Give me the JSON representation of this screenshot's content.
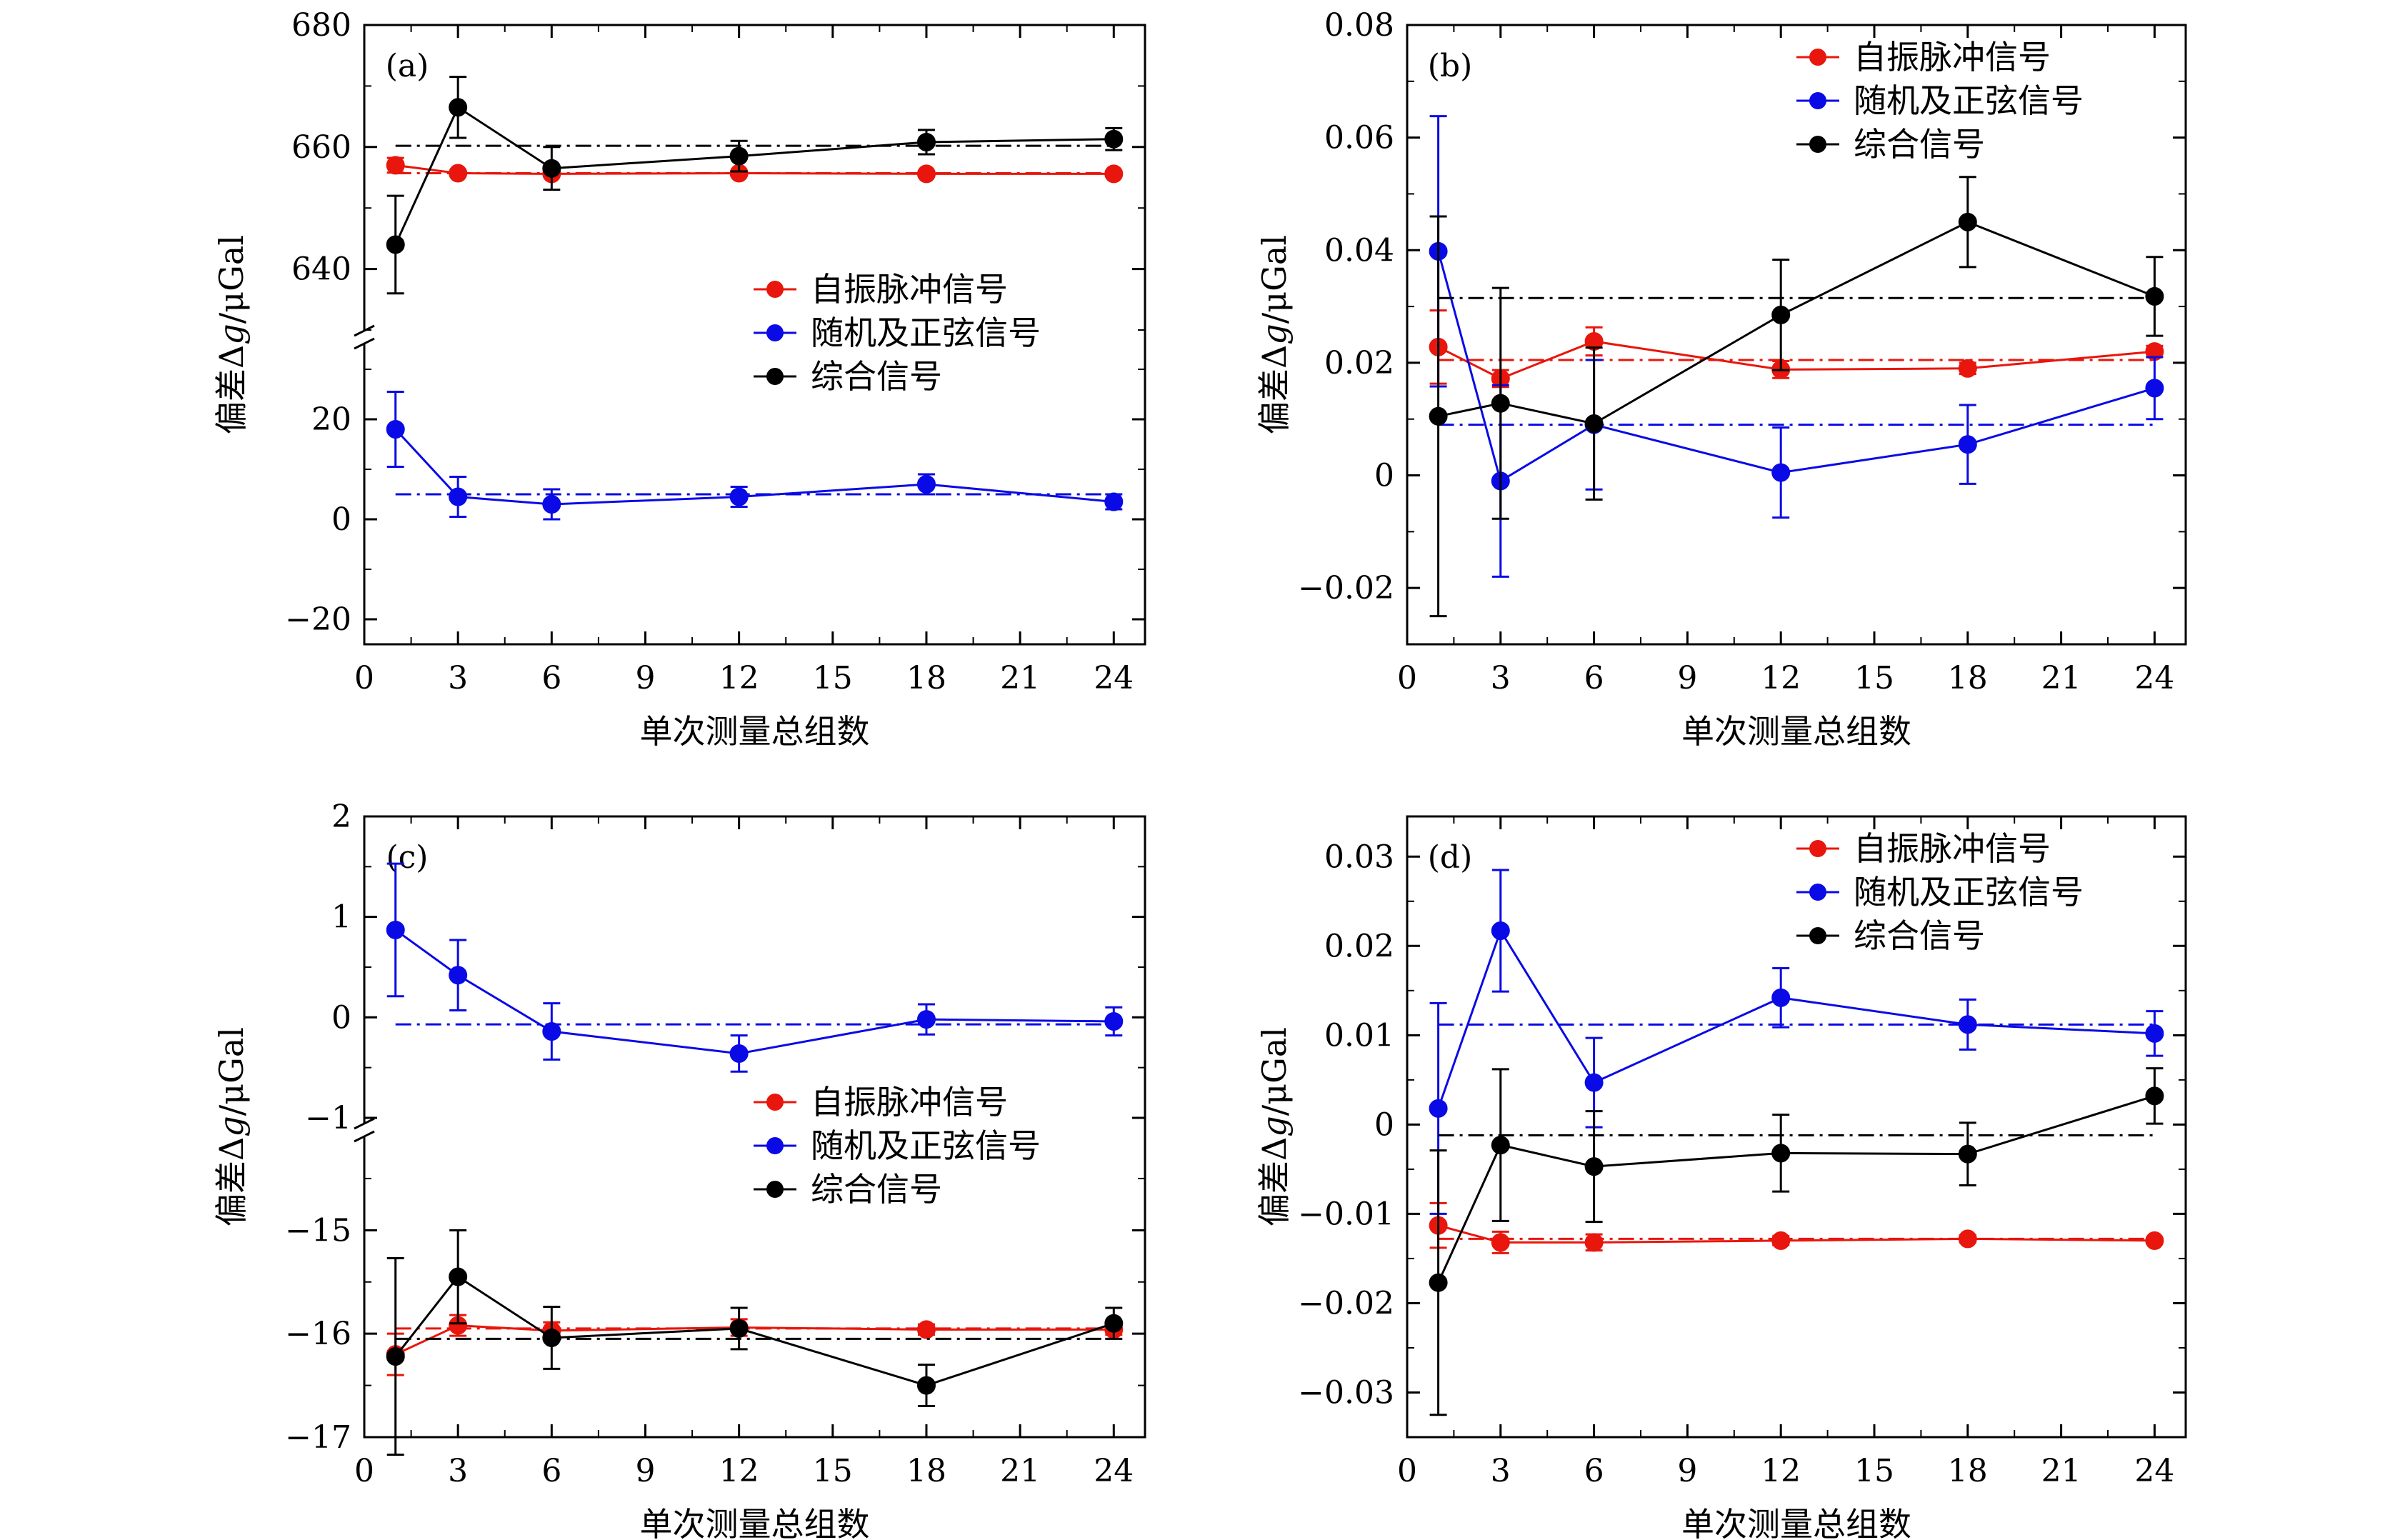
{
  "figure": {
    "xlabel": "单次测量总组数",
    "ylabel_text": "偏差Δ",
    "ylabel_italic": "g",
    "ylabel_unit": "/μGal",
    "colors": {
      "red": "#e8160c",
      "blue": "#0a0ae6",
      "black": "#000000"
    }
  },
  "chart_data": [
    {
      "id": "a",
      "type": "line",
      "panel_label": "(a)",
      "broken_axis": true,
      "x": [
        1,
        3,
        6,
        12,
        18,
        24
      ],
      "xlim": [
        0,
        25
      ],
      "xticks": [
        0,
        3,
        6,
        9,
        12,
        15,
        18,
        21,
        24
      ],
      "upper": {
        "ylim": [
          630,
          680
        ],
        "yticks": [
          640,
          660,
          680
        ]
      },
      "lower": {
        "ylim": [
          -25,
          35
        ],
        "yticks": [
          -20,
          0,
          20
        ]
      },
      "legend": {
        "position": "center-right",
        "labels": [
          "自振脉冲信号",
          "随机及正弦信号",
          "综合信号"
        ]
      },
      "series": [
        {
          "name": "自振脉冲信号",
          "color": "#e8160c",
          "segment": "upper",
          "values": [
            657,
            655.7,
            655.6,
            655.7,
            655.6,
            655.6
          ],
          "errors": [
            1.2,
            0.3,
            0.3,
            0.3,
            0.3,
            0.2
          ],
          "mean": 655.7
        },
        {
          "name": "随机及正弦信号",
          "color": "#0a0ae6",
          "segment": "lower",
          "values": [
            18,
            4.5,
            3,
            4.5,
            7,
            3.5
          ],
          "errors": [
            7.5,
            4,
            3,
            2,
            2,
            1.5
          ],
          "mean": 5
        },
        {
          "name": "综合信号",
          "color": "#000000",
          "segment": "upper",
          "values": [
            644,
            666.5,
            656.5,
            658.5,
            660.8,
            661.3
          ],
          "errors": [
            8,
            5,
            3.5,
            2.5,
            2,
            1.8
          ],
          "mean": 660.2
        }
      ]
    },
    {
      "id": "b",
      "type": "line",
      "panel_label": "(b)",
      "broken_axis": false,
      "x": [
        1,
        3,
        6,
        12,
        18,
        24
      ],
      "xlim": [
        0,
        25
      ],
      "xticks": [
        0,
        3,
        6,
        9,
        12,
        15,
        18,
        21,
        24
      ],
      "ylim": [
        -0.03,
        0.08
      ],
      "yticks": [
        -0.02,
        0,
        0.02,
        0.04,
        0.06,
        0.08
      ],
      "ytick_labels": [
        "−0.02",
        "0",
        "0.02",
        "0.04",
        "0.06",
        "0.08"
      ],
      "legend": {
        "position": "top-right",
        "labels": [
          "自振脉冲信号",
          "随机及正弦信号",
          "综合信号"
        ]
      },
      "series": [
        {
          "name": "自振脉冲信号",
          "color": "#e8160c",
          "values": [
            0.0228,
            0.0172,
            0.0238,
            0.0188,
            0.019,
            0.022
          ],
          "errors": [
            0.0065,
            0.0015,
            0.0025,
            0.0015,
            0.001,
            0.001
          ],
          "mean": 0.0205
        },
        {
          "name": "随机及正弦信号",
          "color": "#0a0ae6",
          "values": [
            0.0398,
            -0.001,
            0.009,
            0.0005,
            0.0055,
            0.0155
          ],
          "errors": [
            0.024,
            0.017,
            0.0115,
            0.008,
            0.007,
            0.0055
          ],
          "mean": 0.009
        },
        {
          "name": "综合信号",
          "color": "#000000",
          "values": [
            0.0105,
            0.0128,
            0.0092,
            0.0285,
            0.045,
            0.0318
          ],
          "errors": [
            0.0355,
            0.0205,
            0.0135,
            0.0098,
            0.008,
            0.007
          ],
          "mean": 0.0315
        }
      ]
    },
    {
      "id": "c",
      "type": "line",
      "panel_label": "(c)",
      "broken_axis": true,
      "x": [
        1,
        3,
        6,
        12,
        18,
        24
      ],
      "xlim": [
        0,
        25
      ],
      "xticks": [
        0,
        3,
        6,
        9,
        12,
        15,
        18,
        21,
        24
      ],
      "upper": {
        "ylim": [
          -1.05,
          2
        ],
        "yticks": [
          -1,
          0,
          1,
          2
        ]
      },
      "lower": {
        "ylim": [
          -17,
          -14.1
        ],
        "yticks": [
          -17,
          -16,
          -15
        ]
      },
      "ytick_labels": {
        "-17": "−17",
        "-16": "−16",
        "-15": "−15",
        "-1": "−1",
        "0": "0",
        "1": "1",
        "2": "2"
      },
      "legend": {
        "position": "center-right",
        "labels": [
          "自振脉冲信号",
          "随机及正弦信号",
          "综合信号"
        ]
      },
      "series": [
        {
          "name": "自振脉冲信号",
          "color": "#e8160c",
          "segment": "lower",
          "values": [
            -16.2,
            -15.92,
            -15.97,
            -15.94,
            -15.96,
            -15.96
          ],
          "errors": [
            0.2,
            0.1,
            0.08,
            0.08,
            0.05,
            0.05
          ],
          "mean": -15.95
        },
        {
          "name": "随机及正弦信号",
          "color": "#0a0ae6",
          "segment": "upper",
          "values": [
            0.87,
            0.42,
            -0.14,
            -0.36,
            -0.02,
            -0.04
          ],
          "errors": [
            0.66,
            0.35,
            0.28,
            0.18,
            0.15,
            0.14
          ],
          "mean": -0.07
        },
        {
          "name": "综合信号",
          "color": "#000000",
          "segment": "lower",
          "values": [
            -16.22,
            -15.45,
            -16.04,
            -15.95,
            -16.5,
            -15.9
          ],
          "errors": [
            0.95,
            0.45,
            0.3,
            0.2,
            0.2,
            0.15
          ],
          "mean": -16.05
        }
      ]
    },
    {
      "id": "d",
      "type": "line",
      "panel_label": "(d)",
      "broken_axis": false,
      "x": [
        1,
        3,
        6,
        12,
        18,
        24
      ],
      "xlim": [
        0,
        25
      ],
      "xticks": [
        0,
        3,
        6,
        9,
        12,
        15,
        18,
        21,
        24
      ],
      "ylim": [
        -0.035,
        0.0345
      ],
      "yticks": [
        -0.03,
        -0.02,
        -0.01,
        0,
        0.01,
        0.02,
        0.03
      ],
      "ytick_labels": [
        "−0.03",
        "−0.02",
        "−0.01",
        "0",
        "0.01",
        "0.02",
        "0.03"
      ],
      "legend": {
        "position": "top-right",
        "labels": [
          "自振脉冲信号",
          "随机及正弦信号",
          "综合信号"
        ]
      },
      "series": [
        {
          "name": "自振脉冲信号",
          "color": "#e8160c",
          "values": [
            -0.0113,
            -0.0132,
            -0.0132,
            -0.013,
            -0.0128,
            -0.013
          ],
          "errors": [
            0.0025,
            0.0012,
            0.0009,
            0.0005,
            0.0004,
            0.0003
          ],
          "mean": -0.0128
        },
        {
          "name": "随机及正弦信号",
          "color": "#0a0ae6",
          "values": [
            0.0018,
            0.0217,
            0.0047,
            0.0142,
            0.0112,
            0.0102
          ],
          "errors": [
            0.0118,
            0.0068,
            0.005,
            0.0033,
            0.0028,
            0.0025
          ],
          "mean": 0.0112
        },
        {
          "name": "综合信号",
          "color": "#000000",
          "values": [
            -0.0177,
            -0.0023,
            -0.0047,
            -0.0032,
            -0.0033,
            0.0032
          ],
          "errors": [
            0.0148,
            0.0085,
            0.0062,
            0.0043,
            0.0035,
            0.0031
          ],
          "mean": -0.0012
        }
      ]
    }
  ]
}
